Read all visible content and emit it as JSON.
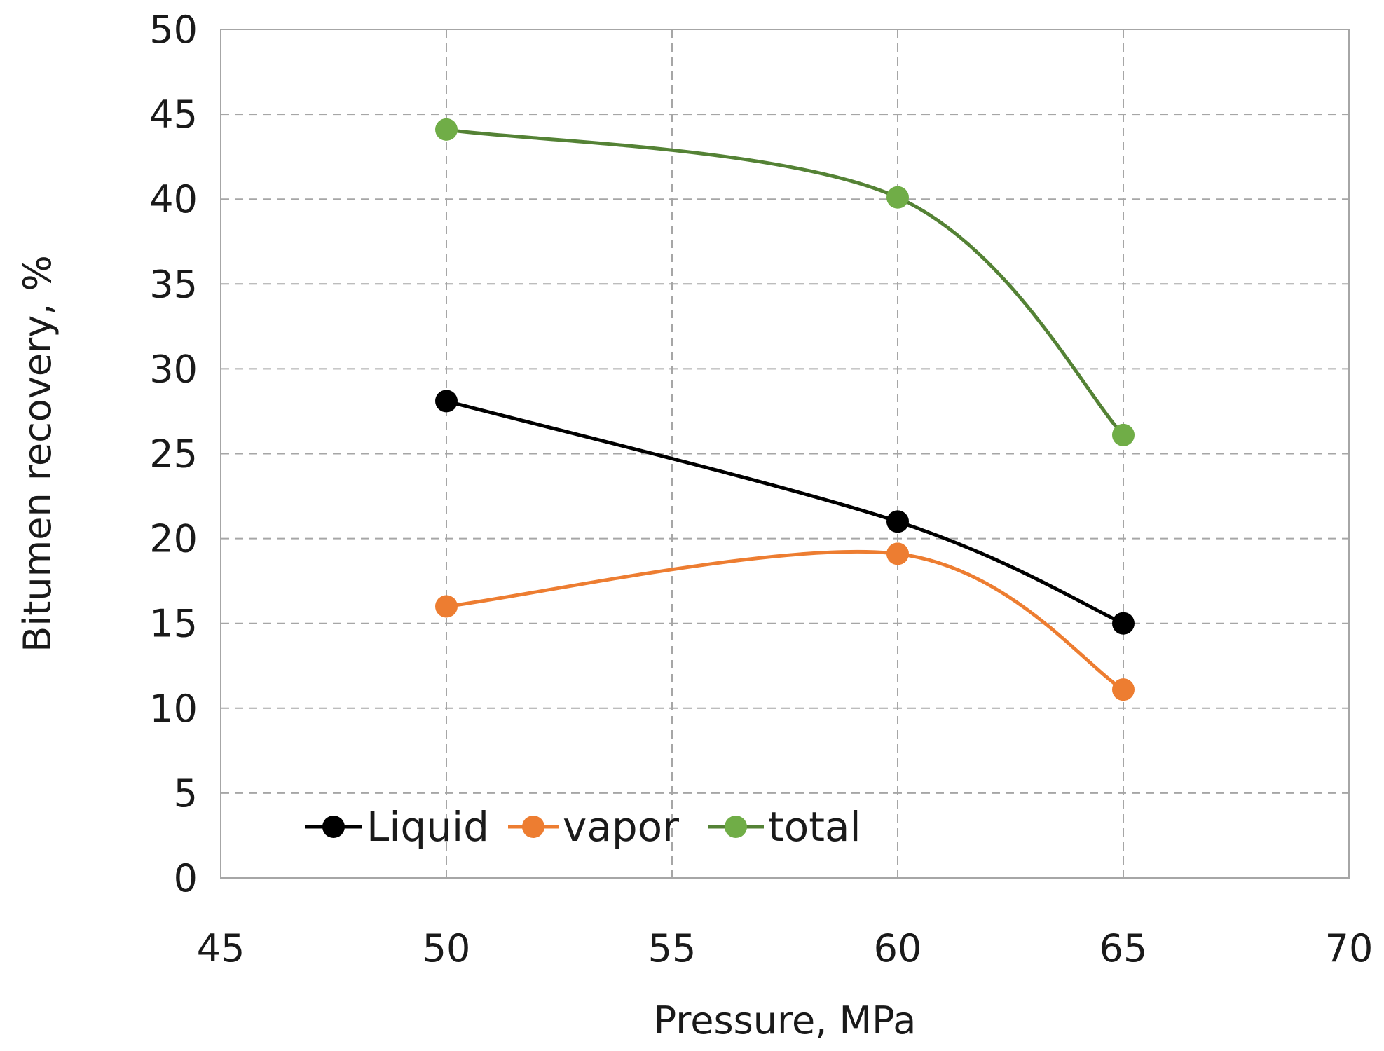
{
  "chart_data": {
    "type": "line",
    "title": "",
    "xlabel": "Pressure, MPa",
    "ylabel": "Bitumen recovery, %",
    "xlim": [
      45,
      70
    ],
    "ylim": [
      0,
      50
    ],
    "xticks": [
      45,
      50,
      55,
      60,
      65,
      70
    ],
    "yticks": [
      0,
      5,
      10,
      15,
      20,
      25,
      30,
      35,
      40,
      45,
      50
    ],
    "grid": true,
    "smooth": true,
    "legend_position": "bottom-left",
    "x": [
      50,
      60,
      65
    ],
    "series": [
      {
        "name": "Liquid",
        "color": "#000000",
        "values": [
          28.1,
          21.0,
          15.0
        ]
      },
      {
        "name": "vapor",
        "color": "#ed7d31",
        "values": [
          16.0,
          19.1,
          11.1
        ]
      },
      {
        "name": "total",
        "color": "#70ad47",
        "line_color": "#548235",
        "values": [
          44.1,
          40.1,
          26.1
        ]
      }
    ]
  }
}
